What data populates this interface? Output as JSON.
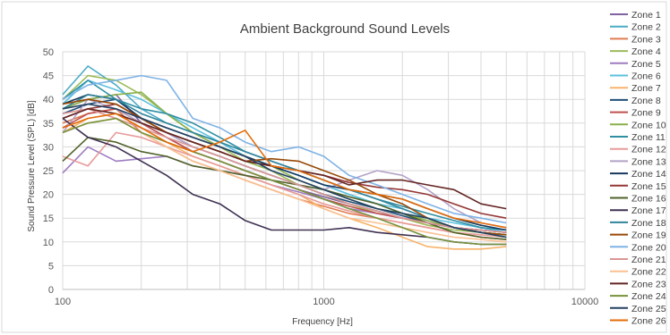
{
  "chart_data": {
    "type": "line",
    "title": "Ambient Background Sound Levels",
    "xlabel": "Frequency [Hz]",
    "ylabel": "Sound Pressure Level (SPL) [dB]",
    "x_scale": "log",
    "xlim": [
      100,
      10000
    ],
    "ylim": [
      0,
      50
    ],
    "x_ticks": [
      100,
      1000,
      10000
    ],
    "x_tick_labels": [
      "100",
      "1000",
      "10000"
    ],
    "y_ticks": [
      0,
      5,
      10,
      15,
      20,
      25,
      30,
      35,
      40,
      45,
      50
    ],
    "grid": true,
    "legend_position": "right",
    "x": [
      100,
      125,
      160,
      200,
      250,
      315,
      400,
      500,
      630,
      800,
      1000,
      1250,
      1600,
      2000,
      2500,
      3150,
      4000,
      5000
    ],
    "series": [
      {
        "name": "Zone 1",
        "color": "#8064a2",
        "values": [
          38,
          40,
          41,
          35,
          32,
          29,
          27,
          25,
          23,
          21,
          19.5,
          18,
          16.5,
          15,
          14,
          13,
          12.5,
          12
        ]
      },
      {
        "name": "Zone 2",
        "color": "#4bacc6",
        "values": [
          41,
          47,
          43,
          38,
          35,
          33,
          31,
          28,
          26,
          24,
          22,
          20,
          18,
          16,
          14,
          13,
          12,
          11.5
        ]
      },
      {
        "name": "Zone 3",
        "color": "#e07b50",
        "values": [
          35,
          37,
          38,
          33,
          30,
          27,
          25,
          23,
          21,
          19,
          17.5,
          16,
          15,
          14,
          13,
          12,
          11,
          10.5
        ]
      },
      {
        "name": "Zone 4",
        "color": "#9bbb59",
        "values": [
          40,
          45,
          44,
          41,
          37,
          33,
          30,
          27,
          25,
          22,
          20,
          18,
          16,
          15,
          13.5,
          12.5,
          12,
          11
        ]
      },
      {
        "name": "Zone 5",
        "color": "#9e7cc1",
        "values": [
          24.5,
          30,
          27,
          27.5,
          28,
          26,
          25,
          24,
          22,
          20.5,
          19,
          17,
          16,
          15,
          14,
          13,
          12.5,
          12
        ]
      },
      {
        "name": "Zone 6",
        "color": "#5bc0de",
        "values": [
          39,
          44,
          42,
          40,
          37,
          34,
          31,
          28,
          26,
          24,
          22,
          20,
          18,
          17,
          15,
          14,
          13,
          12
        ]
      },
      {
        "name": "Zone 7",
        "color": "#f7b36b",
        "values": [
          33,
          36,
          37,
          34,
          31,
          28,
          26,
          24,
          22,
          20,
          17,
          15,
          13,
          11,
          9,
          8.5,
          8.5,
          9
        ]
      },
      {
        "name": "Zone 8",
        "color": "#1f4e79",
        "values": [
          37,
          39,
          40,
          36,
          33,
          30,
          28,
          26,
          24,
          22,
          20,
          18.5,
          17,
          15.5,
          14,
          13,
          12,
          11.5
        ]
      },
      {
        "name": "Zone 9",
        "color": "#c0504d",
        "values": [
          34,
          37,
          38,
          35,
          32,
          29,
          27,
          25,
          23,
          21,
          19,
          17.5,
          16,
          15,
          14,
          13,
          12.5,
          12
        ]
      },
      {
        "name": "Zone 10",
        "color": "#8ab04a",
        "values": [
          38,
          40,
          41,
          41.5,
          37,
          33,
          30,
          28,
          26,
          23,
          21,
          19,
          17,
          16,
          14.5,
          13,
          12,
          11.5
        ]
      },
      {
        "name": "Zone 11",
        "color": "#2e8fa3",
        "values": [
          40,
          44,
          40,
          38,
          37,
          35,
          32,
          29,
          27,
          25,
          23,
          21,
          19,
          17.5,
          16,
          14.5,
          13,
          12.5
        ]
      },
      {
        "name": "Zone 12",
        "color": "#e89a9a",
        "values": [
          28,
          26,
          33,
          32,
          30,
          28,
          26,
          24,
          22,
          20,
          18,
          16.5,
          15,
          14,
          13,
          12,
          11.5,
          11
        ]
      },
      {
        "name": "Zone 13",
        "color": "#b3a2c7",
        "values": [
          33,
          40,
          38,
          35,
          33,
          30,
          28,
          26,
          24,
          22,
          21,
          23,
          25,
          24,
          21,
          17,
          14,
          13
        ]
      },
      {
        "name": "Zone 14",
        "color": "#17375e",
        "values": [
          39,
          41,
          40,
          36,
          34,
          32,
          30,
          28,
          26,
          24,
          22,
          21,
          20,
          19,
          17,
          15,
          13.5,
          12.5
        ]
      },
      {
        "name": "Zone 15",
        "color": "#953735",
        "values": [
          36,
          38,
          39,
          36,
          33,
          31,
          29,
          27,
          26,
          25,
          24,
          22.5,
          21.5,
          21,
          20,
          18,
          16,
          15
        ]
      },
      {
        "name": "Zone 16",
        "color": "#4f6228",
        "values": [
          27,
          32,
          31,
          29,
          28,
          26,
          25,
          24,
          23,
          22,
          21,
          19.5,
          18,
          16,
          14,
          12,
          11,
          10.5
        ]
      },
      {
        "name": "Zone 17",
        "color": "#3f3151",
        "values": [
          36,
          32,
          30,
          27,
          24,
          20,
          18,
          14.5,
          12.5,
          12.5,
          12.5,
          13,
          12,
          11.5,
          11,
          10,
          9.5,
          9.5
        ]
      },
      {
        "name": "Zone 18",
        "color": "#31849b",
        "values": [
          38,
          41,
          40,
          37,
          35,
          33,
          31,
          29,
          27,
          25,
          23,
          21,
          19,
          17,
          15,
          13,
          12,
          11
        ]
      },
      {
        "name": "Zone 19",
        "color": "#974806",
        "values": [
          39,
          40,
          39,
          36,
          33,
          31,
          29,
          27,
          27.5,
          27,
          25,
          23,
          20,
          18,
          15,
          13,
          12,
          11.5
        ]
      },
      {
        "name": "Zone 20",
        "color": "#7fb2e5",
        "values": [
          40,
          43,
          44,
          45,
          44,
          36,
          34,
          31,
          29,
          30,
          28,
          24,
          22,
          20,
          18,
          16,
          15,
          14
        ]
      },
      {
        "name": "Zone 21",
        "color": "#d99694",
        "values": [
          37,
          38,
          36,
          34,
          32,
          30,
          28,
          26,
          24,
          22,
          20,
          18,
          16.5,
          15,
          14,
          13,
          12.5,
          12
        ]
      },
      {
        "name": "Zone 22",
        "color": "#fac090",
        "values": [
          33,
          35,
          36,
          33,
          30,
          27,
          25,
          23,
          21,
          19,
          17,
          15,
          14,
          13,
          12,
          11,
          10.5,
          10
        ]
      },
      {
        "name": "Zone 23",
        "color": "#632523",
        "values": [
          36,
          38,
          37,
          35,
          33,
          31,
          29,
          27,
          26,
          25,
          24,
          22,
          23,
          23,
          22,
          21,
          18,
          17
        ]
      },
      {
        "name": "Zone 24",
        "color": "#76923c",
        "values": [
          33,
          35,
          36,
          33,
          31,
          29,
          27,
          25,
          23,
          21,
          19,
          17,
          15,
          13,
          11,
          10,
          9.5,
          9.5
        ]
      },
      {
        "name": "Zone 25",
        "color": "#244062",
        "values": [
          38,
          39,
          38,
          36,
          34,
          32,
          30,
          28,
          25,
          23,
          21,
          19,
          17,
          16,
          15,
          13,
          12,
          11
        ]
      },
      {
        "name": "Zone 26",
        "color": "#e46c0a",
        "values": [
          34,
          36,
          37,
          34,
          31,
          29,
          31,
          33.5,
          26,
          25,
          23,
          21,
          20,
          19,
          17,
          15,
          14,
          13
        ]
      }
    ]
  }
}
